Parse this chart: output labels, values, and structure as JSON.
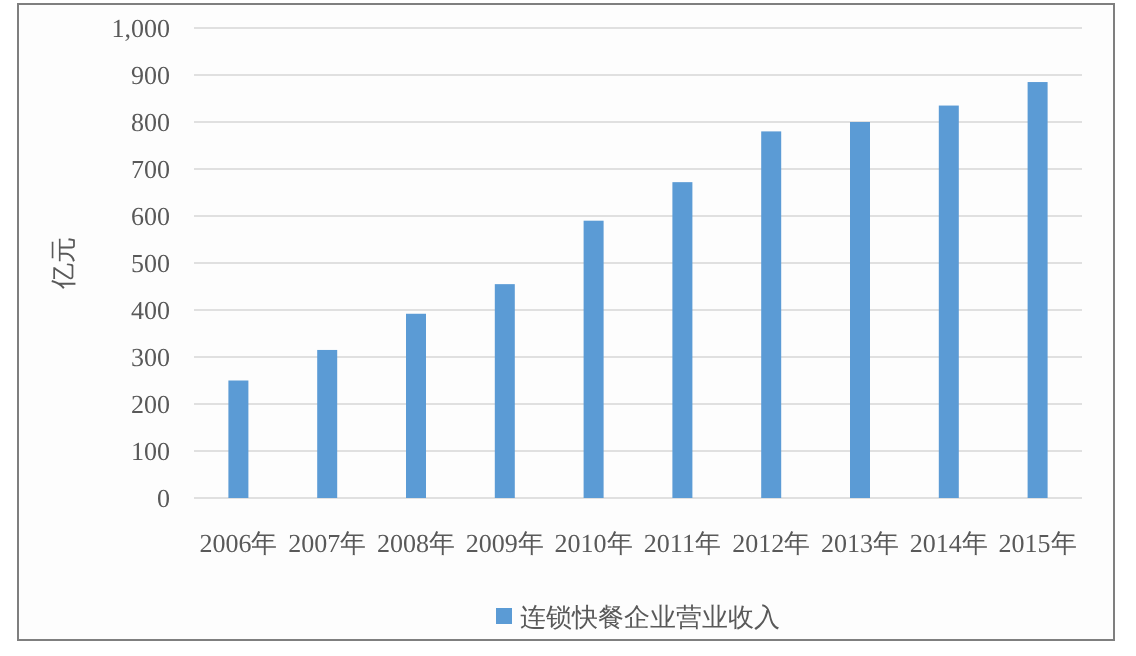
{
  "chart_data": {
    "type": "bar",
    "ylabel": "亿元",
    "categories": [
      "2006年",
      "2007年",
      "2008年",
      "2009年",
      "2010年",
      "2011年",
      "2012年",
      "2013年",
      "2014年",
      "2015年"
    ],
    "series": [
      {
        "name": "连锁快餐企业营业收入",
        "color": "#5b9bd5",
        "values": [
          250,
          315,
          392,
          455,
          590,
          672,
          780,
          800,
          835,
          885
        ]
      }
    ],
    "ylim": [
      0,
      1000
    ],
    "yticks": [
      0,
      {
        "value": 100,
        "label": "100"
      },
      200,
      300,
      400,
      500,
      600,
      700,
      800,
      900,
      {
        "value": 1000,
        "label": "1,000"
      }
    ],
    "grid": "y",
    "legend": "bottom"
  }
}
